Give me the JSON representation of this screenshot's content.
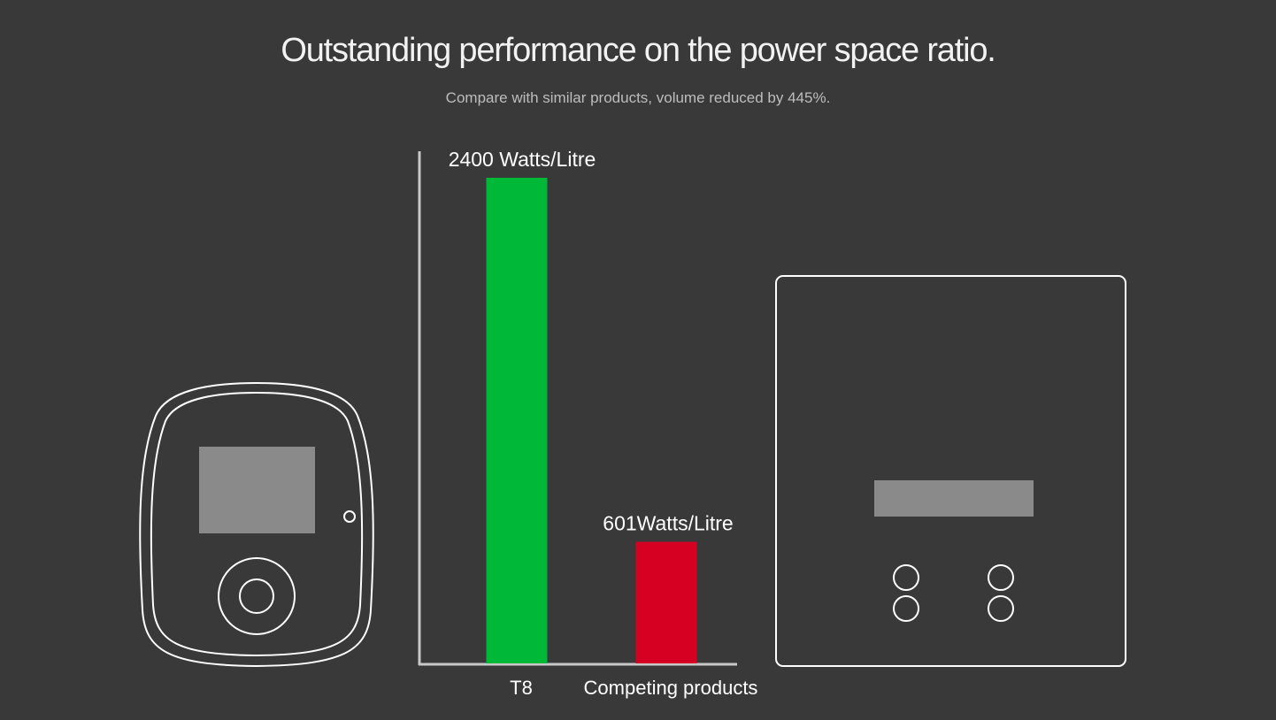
{
  "header": {
    "title": "Outstanding performance on the power space ratio.",
    "subtitle": "Compare with similar products, volume reduced by 445%."
  },
  "chart_data": {
    "type": "bar",
    "title": "",
    "categories": [
      "T8",
      "Competing products"
    ],
    "values": [
      2400,
      601
    ],
    "data_labels": [
      "2400 Watts/Litre",
      "601Watts/Litre"
    ],
    "unit": "Watts/Litre",
    "colors": [
      "#00b838",
      "#d50022"
    ],
    "xlabel": "",
    "ylabel": "",
    "ylim": [
      0,
      2400
    ],
    "grid": false,
    "legend": "none"
  },
  "illustrations": {
    "left_device_icon": "t8-charger-device-icon",
    "right_device_icon": "competitor-charger-box-icon"
  },
  "colors": {
    "background": "#393939",
    "axis": "#c8c8c8",
    "outline": "#ffffff",
    "screen": "#8a8a8a"
  }
}
